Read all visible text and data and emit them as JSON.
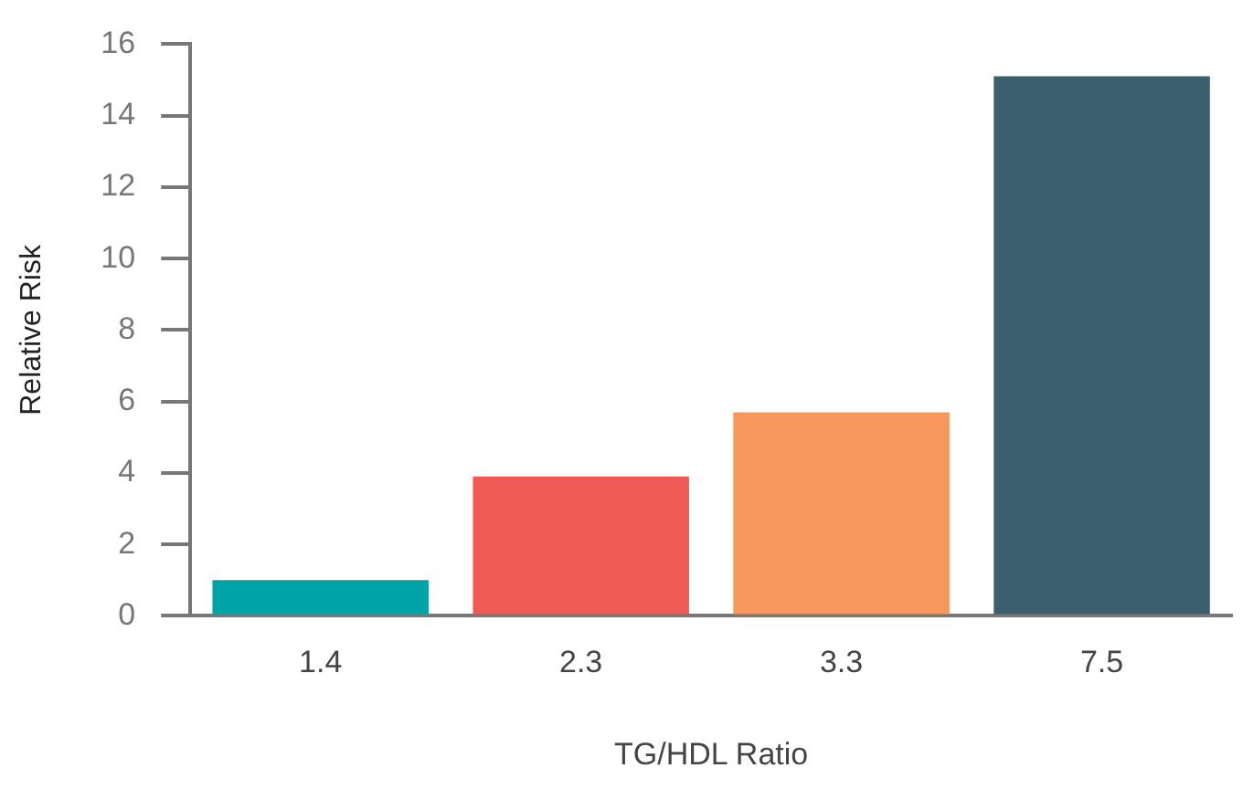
{
  "chart_data": {
    "type": "bar",
    "xlabel": "TG/HDL Ratio",
    "ylabel": "Relative Risk",
    "categories": [
      "1.4",
      "2.3",
      "3.3",
      "7.5"
    ],
    "values": [
      1,
      3.9,
      5.7,
      15.1
    ],
    "colors": [
      "#00a4a6",
      "#f05a55",
      "#f7975b",
      "#3c5f6e"
    ],
    "ylim": [
      0,
      16
    ],
    "yticks": [
      0,
      2,
      4,
      6,
      8,
      10,
      12,
      14,
      16
    ],
    "grid": false,
    "legend": false
  }
}
